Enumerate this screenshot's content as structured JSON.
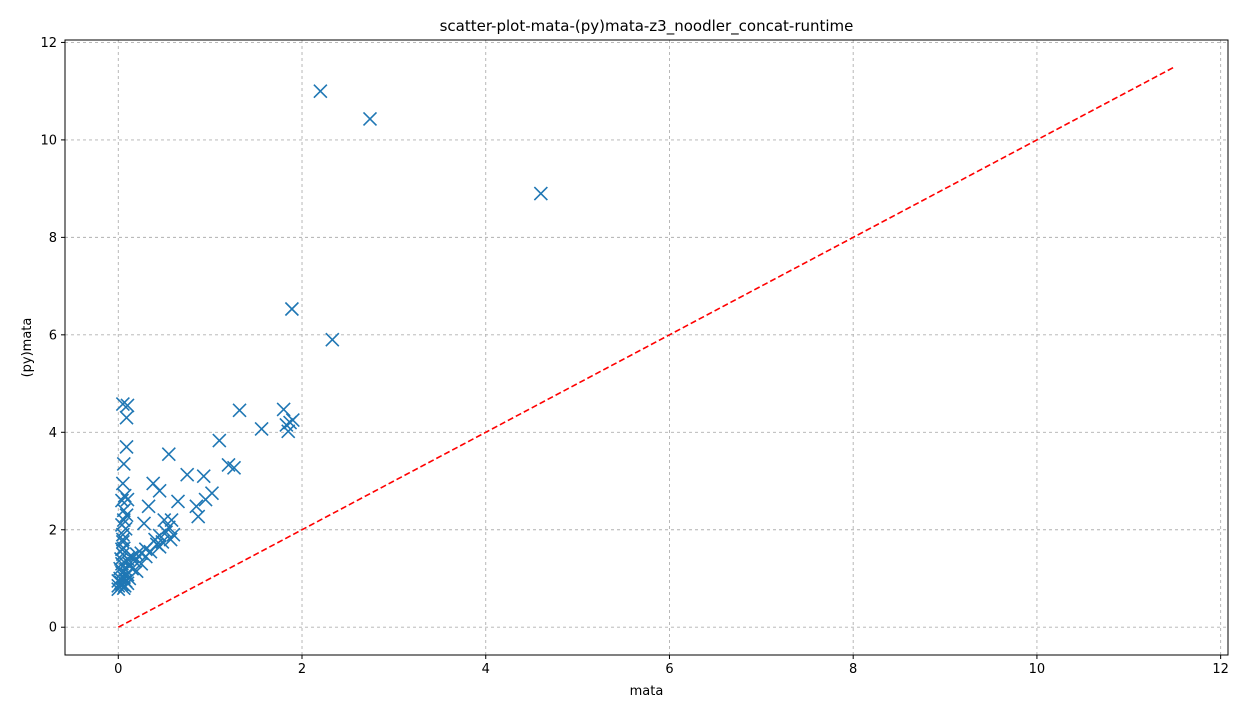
{
  "chart_data": {
    "type": "scatter",
    "title": "scatter-plot-mata-(py)mata-z3_noodler_concat-runtime",
    "xlabel": "mata",
    "ylabel": "(py)mata",
    "xlim": [
      -0.58,
      12.08
    ],
    "ylim": [
      -0.57,
      12.05
    ],
    "xticks": [
      0,
      2,
      4,
      6,
      8,
      10,
      12
    ],
    "yticks": [
      0,
      2,
      4,
      6,
      8,
      10,
      12
    ],
    "grid": true,
    "marker": "x",
    "colors": {
      "points": "#1f77b4",
      "reference_line": "#ff0000",
      "grid": "#b0b0b0"
    },
    "reference_line": {
      "style": "dashed",
      "x": [
        0,
        11.5
      ],
      "y": [
        0,
        11.5
      ]
    },
    "series": [
      {
        "values": [
          [
            2.2,
            11.0
          ],
          [
            2.74,
            10.43
          ],
          [
            4.6,
            8.9
          ],
          [
            1.89,
            6.53
          ],
          [
            2.33,
            5.9
          ],
          [
            0.05,
            4.58
          ],
          [
            0.1,
            4.55
          ],
          [
            0.09,
            4.3
          ],
          [
            1.32,
            4.45
          ],
          [
            1.8,
            4.47
          ],
          [
            1.9,
            4.25
          ],
          [
            1.83,
            4.15
          ],
          [
            1.87,
            4.2
          ],
          [
            1.85,
            4.02
          ],
          [
            1.56,
            4.07
          ],
          [
            1.1,
            3.83
          ],
          [
            0.09,
            3.7
          ],
          [
            0.55,
            3.55
          ],
          [
            0.06,
            3.35
          ],
          [
            1.2,
            3.33
          ],
          [
            1.26,
            3.27
          ],
          [
            0.75,
            3.13
          ],
          [
            0.93,
            3.1
          ],
          [
            0.38,
            2.95
          ],
          [
            0.05,
            2.95
          ],
          [
            0.45,
            2.8
          ],
          [
            1.02,
            2.75
          ],
          [
            0.07,
            2.7
          ],
          [
            0.04,
            2.6
          ],
          [
            0.1,
            2.62
          ],
          [
            0.65,
            2.58
          ],
          [
            0.95,
            2.62
          ],
          [
            0.33,
            2.48
          ],
          [
            0.85,
            2.48
          ],
          [
            0.06,
            2.4
          ],
          [
            0.09,
            2.3
          ],
          [
            0.87,
            2.27
          ],
          [
            0.5,
            2.2
          ],
          [
            0.58,
            2.2
          ],
          [
            0.28,
            2.13
          ],
          [
            0.04,
            2.1
          ],
          [
            0.08,
            2.02
          ],
          [
            0.55,
            2.05
          ],
          [
            0.52,
            1.95
          ],
          [
            0.45,
            1.88
          ],
          [
            0.6,
            1.9
          ],
          [
            0.05,
            1.9
          ],
          [
            0.4,
            1.8
          ],
          [
            0.48,
            1.75
          ],
          [
            0.57,
            1.8
          ],
          [
            0.42,
            1.7
          ],
          [
            0.05,
            1.75
          ],
          [
            0.3,
            1.6
          ],
          [
            0.45,
            1.65
          ],
          [
            0.06,
            1.62
          ],
          [
            0.35,
            1.55
          ],
          [
            0.25,
            1.52
          ],
          [
            0.2,
            1.5
          ],
          [
            0.15,
            1.45
          ],
          [
            0.3,
            1.45
          ],
          [
            0.05,
            1.5
          ],
          [
            0.1,
            1.4
          ],
          [
            0.18,
            1.35
          ],
          [
            0.25,
            1.3
          ],
          [
            0.12,
            1.3
          ],
          [
            0.04,
            1.3
          ],
          [
            0.15,
            1.2
          ],
          [
            0.2,
            1.15
          ],
          [
            0.08,
            1.18
          ],
          [
            0.04,
            1.12
          ],
          [
            0.1,
            1.08
          ],
          [
            0.06,
            1.02
          ],
          [
            0.02,
            1.0
          ],
          [
            0.0,
            0.95
          ],
          [
            0.03,
            0.92
          ],
          [
            0.08,
            0.95
          ],
          [
            0.04,
            0.88
          ],
          [
            0.0,
            0.85
          ],
          [
            0.07,
            0.85
          ],
          [
            0.0,
            0.78
          ],
          [
            0.06,
            0.8
          ],
          [
            0.1,
            0.9
          ],
          [
            0.12,
            1.0
          ],
          [
            0.02,
            1.2
          ],
          [
            0.03,
            1.4
          ],
          [
            0.04,
            1.6
          ],
          [
            0.05,
            1.8
          ],
          [
            0.06,
            2.2
          ]
        ]
      }
    ]
  }
}
